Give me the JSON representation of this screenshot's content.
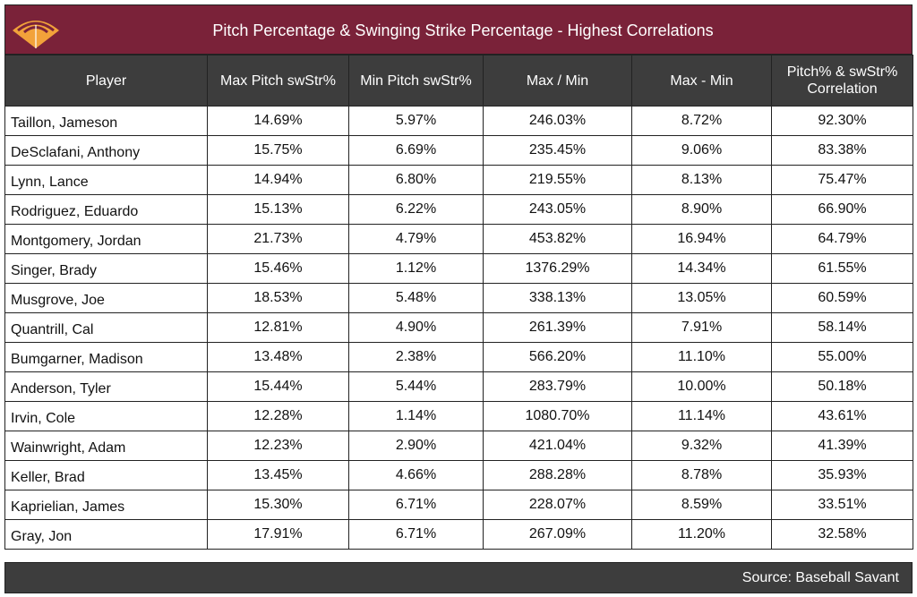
{
  "title": "Pitch Percentage & Swinging Strike Percentage - Highest Correlations",
  "colors": {
    "title_bg": "#7a2239",
    "header_bg": "#3d3d3d",
    "logo_orange": "#f2a23a"
  },
  "logo_icon": "baseball-field-logo-icon",
  "source": "Source: Baseball Savant",
  "chart_data": {
    "type": "table",
    "columns": [
      "Player",
      "Max Pitch swStr%",
      "Min Pitch swStr%",
      "Max / Min",
      "Max - Min",
      "Pitch% & swStr% Correlation"
    ],
    "rows": [
      [
        "Taillon, Jameson",
        "14.69%",
        "5.97%",
        "246.03%",
        "8.72%",
        "92.30%"
      ],
      [
        "DeSclafani, Anthony",
        "15.75%",
        "6.69%",
        "235.45%",
        "9.06%",
        "83.38%"
      ],
      [
        "Lynn, Lance",
        "14.94%",
        "6.80%",
        "219.55%",
        "8.13%",
        "75.47%"
      ],
      [
        "Rodriguez, Eduardo",
        "15.13%",
        "6.22%",
        "243.05%",
        "8.90%",
        "66.90%"
      ],
      [
        "Montgomery, Jordan",
        "21.73%",
        "4.79%",
        "453.82%",
        "16.94%",
        "64.79%"
      ],
      [
        "Singer, Brady",
        "15.46%",
        "1.12%",
        "1376.29%",
        "14.34%",
        "61.55%"
      ],
      [
        "Musgrove, Joe",
        "18.53%",
        "5.48%",
        "338.13%",
        "13.05%",
        "60.59%"
      ],
      [
        "Quantrill, Cal",
        "12.81%",
        "4.90%",
        "261.39%",
        "7.91%",
        "58.14%"
      ],
      [
        "Bumgarner, Madison",
        "13.48%",
        "2.38%",
        "566.20%",
        "11.10%",
        "55.00%"
      ],
      [
        "Anderson, Tyler",
        "15.44%",
        "5.44%",
        "283.79%",
        "10.00%",
        "50.18%"
      ],
      [
        "Irvin, Cole",
        "12.28%",
        "1.14%",
        "1080.70%",
        "11.14%",
        "43.61%"
      ],
      [
        "Wainwright, Adam",
        "12.23%",
        "2.90%",
        "421.04%",
        "9.32%",
        "41.39%"
      ],
      [
        "Keller, Brad",
        "13.45%",
        "4.66%",
        "288.28%",
        "8.78%",
        "35.93%"
      ],
      [
        "Kaprielian, James",
        "15.30%",
        "6.71%",
        "228.07%",
        "8.59%",
        "33.51%"
      ],
      [
        "Gray, Jon",
        "17.91%",
        "6.71%",
        "267.09%",
        "11.20%",
        "32.58%"
      ]
    ]
  }
}
